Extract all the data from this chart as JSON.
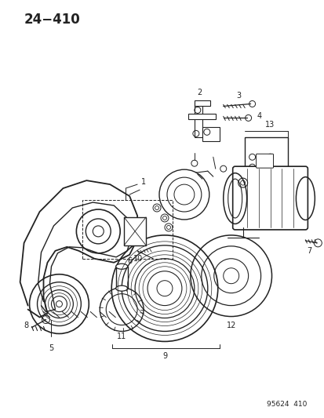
{
  "title": "24−410",
  "part_number": "95624  410",
  "bg": "#ffffff",
  "lc": "#222222",
  "figsize": [
    4.14,
    5.33
  ],
  "dpi": 100
}
